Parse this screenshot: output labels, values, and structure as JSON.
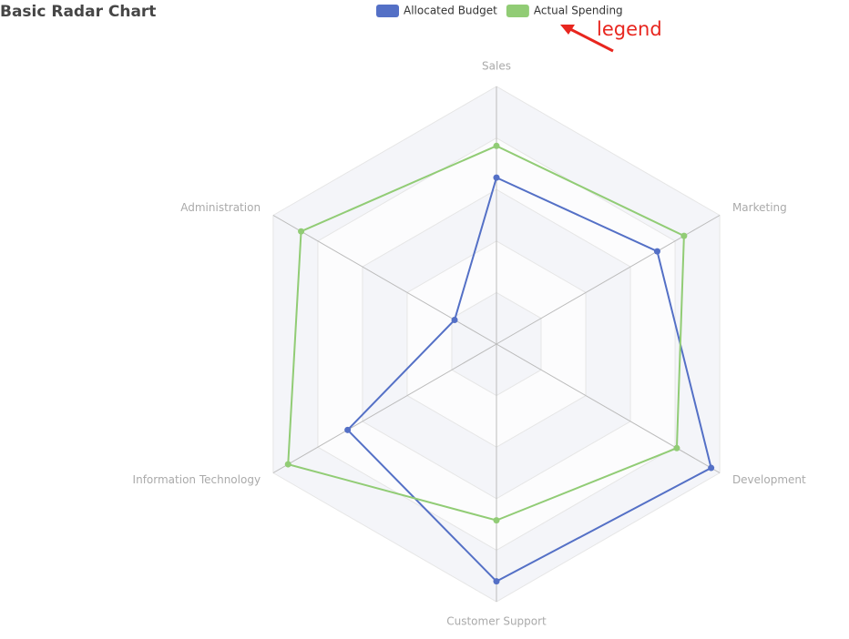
{
  "chart_data": {
    "type": "radar",
    "title": "Basic Radar Chart",
    "indicators": [
      {
        "name": "Sales",
        "max": 6500
      },
      {
        "name": "Administration",
        "max": 16000
      },
      {
        "name": "Information Technology",
        "max": 30000
      },
      {
        "name": "Customer Support",
        "max": 38000
      },
      {
        "name": "Development",
        "max": 52000
      },
      {
        "name": "Marketing",
        "max": 25000
      }
    ],
    "series": [
      {
        "name": "Allocated Budget",
        "color": "#5470c6",
        "values": [
          4200,
          3000,
          20000,
          35000,
          50000,
          18000
        ]
      },
      {
        "name": "Actual Spending",
        "color": "#91cc75",
        "values": [
          5000,
          14000,
          28000,
          26000,
          42000,
          21000
        ]
      }
    ],
    "legend_position": "top",
    "annotation": "legend"
  }
}
